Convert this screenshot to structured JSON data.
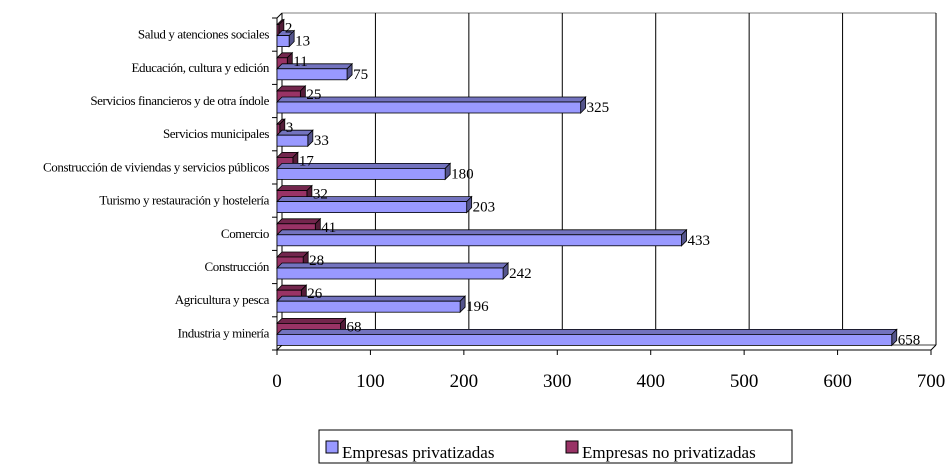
{
  "chart_data": {
    "type": "bar",
    "orientation": "horizontal",
    "style": "3d",
    "categories": [
      "Industria y minería",
      "Agricultura y pesca",
      "Construcción",
      "Comercio",
      "Turismo y restauración y hostelería",
      "Construcción de viviendas y servicios públicos",
      "Servicios municipales",
      "Servicios financieros y de otra índole",
      "Educación, cultura y edición",
      "Salud y atenciones sociales"
    ],
    "series": [
      {
        "name": "Empresas privatizadas",
        "color": "#9999ff",
        "values": [
          658,
          196,
          242,
          433,
          203,
          180,
          33,
          325,
          75,
          13
        ]
      },
      {
        "name": "Empresas no privatizadas",
        "color": "#993366",
        "values": [
          68,
          26,
          28,
          41,
          32,
          17,
          3,
          25,
          11,
          2
        ]
      }
    ],
    "xticks": [
      "0",
      "100",
      "200",
      "300",
      "400",
      "500",
      "600",
      "700"
    ],
    "xlim": [
      0,
      700
    ],
    "grid": "vertical",
    "legend_position": "bottom"
  }
}
